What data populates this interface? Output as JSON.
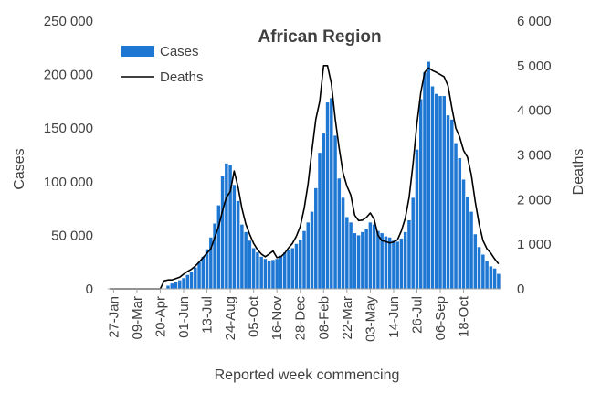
{
  "chart_data": {
    "type": "bar",
    "title": "African Region",
    "xlabel": "Reported week commencing",
    "ylabel": "Cases",
    "y2label": "Deaths",
    "ylim": [
      0,
      250000
    ],
    "y2lim": [
      0,
      6000
    ],
    "yticks": [
      "0",
      "50 000",
      "100 000",
      "150 000",
      "200 000",
      "250 000"
    ],
    "y2ticks": [
      "0",
      "1 000",
      "2 000",
      "3 000",
      "4 000",
      "5 000",
      "6 000"
    ],
    "xtick_labels": [
      "27-Jan",
      "09-Mar",
      "20-Apr",
      "01-Jun",
      "13-Jul",
      "24-Aug",
      "05-Oct",
      "16-Nov",
      "28-Dec",
      "08-Feb",
      "22-Mar",
      "03-May",
      "14-Jun",
      "26-Jul",
      "06-Sep",
      "18-Oct"
    ],
    "xtick_first_week": 1,
    "xtick_step": 6,
    "legend_position": "top-left",
    "colors": {
      "cases": "#1f77d4",
      "deaths": "#000000"
    },
    "series": [
      {
        "name": "Cases",
        "type": "bar",
        "axis": "left",
        "values": [
          0,
          0,
          0,
          0,
          0,
          0,
          0,
          0,
          0,
          0,
          0,
          0,
          0,
          0,
          0,
          3000,
          5000,
          6000,
          8000,
          10000,
          13000,
          16000,
          20000,
          25000,
          30000,
          37000,
          48000,
          61000,
          78000,
          105000,
          117000,
          116000,
          97000,
          82000,
          60000,
          53000,
          45000,
          38000,
          34000,
          30000,
          28000,
          26000,
          27000,
          28000,
          31000,
          34000,
          36000,
          38000,
          42000,
          46000,
          54000,
          62000,
          72000,
          94000,
          127000,
          145000,
          174000,
          178000,
          143000,
          103000,
          85000,
          67000,
          62000,
          52000,
          50000,
          53000,
          56000,
          62000,
          60000,
          54000,
          52000,
          49000,
          48000,
          45000,
          44000,
          47000,
          53000,
          64000,
          85000,
          130000,
          177000,
          202000,
          212000,
          189000,
          182000,
          180000,
          180000,
          162000,
          158000,
          136000,
          122000,
          102000,
          86000,
          72000,
          51000,
          39000,
          32000,
          26000,
          21000,
          19000,
          14000
        ]
      },
      {
        "name": "Deaths",
        "type": "line",
        "axis": "right",
        "values": [
          0,
          0,
          0,
          0,
          0,
          0,
          0,
          0,
          0,
          0,
          0,
          0,
          0,
          0,
          180,
          200,
          200,
          230,
          260,
          330,
          390,
          440,
          510,
          600,
          700,
          800,
          900,
          1150,
          1400,
          1750,
          2050,
          2180,
          2640,
          2280,
          1800,
          1450,
          1220,
          1020,
          880,
          780,
          720,
          780,
          850,
          700,
          720,
          800,
          920,
          1020,
          1180,
          1400,
          1800,
          2350,
          3100,
          3800,
          4200,
          5000,
          5000,
          4600,
          3800,
          3150,
          2600,
          2300,
          2100,
          1650,
          1530,
          1540,
          1600,
          1700,
          1560,
          1200,
          1080,
          1060,
          1030,
          1050,
          1100,
          1300,
          1580,
          2050,
          2800,
          3700,
          4400,
          4850,
          4950,
          4890,
          4850,
          4800,
          4750,
          4550,
          4050,
          3600,
          3400,
          3100,
          2950,
          2550,
          1950,
          1450,
          1080,
          900,
          800,
          670,
          560
        ]
      }
    ]
  }
}
